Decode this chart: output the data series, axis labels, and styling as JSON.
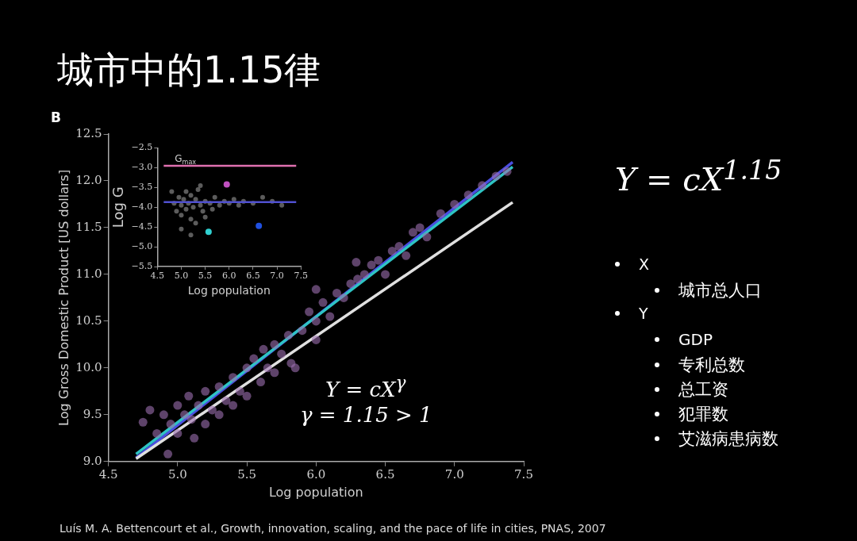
{
  "chart_data": [
    {
      "type": "scatter",
      "title": "城市中的1.15律",
      "xlabel": "Log population",
      "ylabel": "Log Gross Domestic Product [US dollars]",
      "xlim": [
        4.5,
        7.5
      ],
      "ylim": [
        9.0,
        12.5
      ],
      "xticks": [
        {
          "value": 4.5,
          "label": "4.5"
        },
        {
          "value": 5,
          "label": "5.0"
        },
        {
          "value": 5.5,
          "label": "5.5"
        },
        {
          "value": 6,
          "label": "6.0"
        },
        {
          "value": 6.5,
          "label": "6.5"
        },
        {
          "value": 7,
          "label": "7.0"
        },
        {
          "value": 7.5,
          "label": "7.5"
        }
      ],
      "yticks": [
        {
          "value": 9,
          "label": "9.0"
        },
        {
          "value": 9.5,
          "label": "9.5"
        },
        {
          "value": 10,
          "label": "10.0"
        },
        {
          "value": 10.5,
          "label": "10.5"
        },
        {
          "value": 11,
          "label": "11.0"
        },
        {
          "value": 11.5,
          "label": "11.5"
        },
        {
          "value": 12,
          "label": "12.0"
        },
        {
          "value": 12.5,
          "label": "12.5"
        }
      ],
      "grid": false,
      "legend": false,
      "x": [
        4.75,
        4.8,
        4.85,
        4.9,
        4.93,
        4.95,
        5.0,
        5.0,
        5.05,
        5.08,
        5.1,
        5.12,
        5.15,
        5.2,
        5.2,
        5.25,
        5.3,
        5.3,
        5.35,
        5.4,
        5.4,
        5.45,
        5.5,
        5.5,
        5.55,
        5.6,
        5.62,
        5.65,
        5.7,
        5.7,
        5.75,
        5.8,
        5.82,
        5.85,
        5.9,
        5.95,
        6.0,
        6.0,
        6.0,
        6.05,
        6.1,
        6.15,
        6.2,
        6.25,
        6.29,
        6.3,
        6.35,
        6.4,
        6.45,
        6.5,
        6.55,
        6.6,
        6.65,
        6.7,
        6.75,
        6.8,
        6.9,
        7.0,
        7.1,
        7.2,
        7.3,
        7.38
      ],
      "series": [
        {
          "marker": "circle",
          "color": "#9c6fb0",
          "values": [
            9.42,
            9.55,
            9.3,
            9.5,
            9.08,
            9.4,
            9.6,
            9.3,
            9.5,
            9.7,
            9.45,
            9.25,
            9.6,
            9.75,
            9.4,
            9.55,
            9.8,
            9.5,
            9.65,
            9.9,
            9.6,
            9.75,
            10.0,
            9.7,
            10.1,
            9.85,
            10.2,
            10.0,
            10.25,
            9.95,
            10.15,
            10.35,
            10.05,
            10.0,
            10.4,
            10.6,
            10.5,
            10.3,
            10.84,
            10.7,
            10.55,
            10.8,
            10.75,
            10.9,
            11.13,
            10.95,
            11.0,
            11.1,
            11.15,
            11.0,
            11.25,
            11.3,
            11.2,
            11.45,
            11.5,
            11.4,
            11.65,
            11.75,
            11.85,
            11.95,
            12.05,
            12.1
          ]
        },
        {
          "type": "line",
          "color": "#e0e0e0",
          "x": [
            4.7,
            7.42
          ],
          "values": [
            9.03,
            11.77
          ]
        },
        {
          "type": "line",
          "color": "#2ec4c4",
          "x": [
            4.7,
            7.42
          ],
          "values": [
            9.08,
            12.15
          ]
        },
        {
          "type": "line",
          "color": "#4a4ee0",
          "x": [
            4.7,
            7.42
          ],
          "values": [
            9.04,
            12.2
          ]
        }
      ],
      "annotations": [
        "B",
        "Y = cX$^{γ}$",
        "γ = 1.15 > 1",
        "Y = cX$^{1.15}$",
        "X",
        "城市总人口",
        "Y",
        "GDP",
        "专利总数",
        "总工资",
        "犯罪数",
        "艾滋病患病数",
        "Luís M. A. Bettencourt et al., Growth, innovation,  scaling, and the pace of life in cities, PNAS, 2007"
      ]
    },
    {
      "type": "scatter",
      "xlabel": "Log population",
      "ylabel": "Log G",
      "xlim": [
        4.5,
        7.5
      ],
      "ylim": [
        -5.5,
        -2.5
      ],
      "xticks": [
        {
          "value": 4.5,
          "label": "4.5"
        },
        {
          "value": 5,
          "label": "5.0"
        },
        {
          "value": 5.5,
          "label": "5.5"
        },
        {
          "value": 6,
          "label": "6.0"
        },
        {
          "value": 6.5,
          "label": "6.5"
        },
        {
          "value": 7,
          "label": "7.0"
        },
        {
          "value": 7.5,
          "label": "7.5"
        }
      ],
      "yticks": [
        {
          "value": -2.5,
          "label": "−2.5"
        },
        {
          "value": -3,
          "label": "−3.0"
        },
        {
          "value": -3.5,
          "label": "−3.5"
        },
        {
          "value": -4,
          "label": "−4.0"
        },
        {
          "value": -4.5,
          "label": "−4.5"
        },
        {
          "value": -5,
          "label": "−5.0"
        },
        {
          "value": -5.5,
          "label": "−5.5"
        }
      ],
      "grid": false,
      "legend": false,
      "marker": "circle",
      "series": [
        {
          "color": "#9a9a9a",
          "x": [
            4.8,
            4.85,
            4.9,
            4.95,
            5.0,
            5.0,
            5.05,
            5.1,
            5.1,
            5.15,
            5.2,
            5.2,
            5.25,
            5.3,
            5.3,
            5.35,
            5.4,
            5.45,
            5.5,
            5.5,
            5.6,
            5.65,
            5.7,
            5.8,
            5.9,
            6.0,
            6.1,
            6.2,
            6.3,
            6.5,
            6.7,
            6.9,
            7.1,
            5.2,
            5.4,
            5.0
          ],
          "values": [
            -3.6,
            -3.9,
            -4.1,
            -3.75,
            -3.95,
            -4.2,
            -3.8,
            -3.6,
            -4.05,
            -3.9,
            -4.3,
            -3.7,
            -4.0,
            -3.8,
            -4.4,
            -3.55,
            -3.95,
            -4.1,
            -3.85,
            -4.25,
            -3.9,
            -4.05,
            -3.75,
            -3.95,
            -3.85,
            -3.9,
            -3.8,
            -3.95,
            -3.85,
            -3.9,
            -3.75,
            -3.85,
            -3.95,
            -4.7,
            -3.45,
            -4.55
          ]
        },
        {
          "color": "#c050c0",
          "x": [
            5.95
          ],
          "values": [
            -3.42
          ]
        },
        {
          "color": "#30d0d0",
          "x": [
            5.57
          ],
          "values": [
            -4.62
          ]
        },
        {
          "color": "#2050e0",
          "x": [
            6.62
          ],
          "values": [
            -4.47
          ]
        }
      ],
      "ref_lines": [
        {
          "axis": "y",
          "value": -2.95,
          "label": "G$_{max}$",
          "color": "#e070b0"
        },
        {
          "axis": "y",
          "value": -3.87,
          "color": "#5050d0"
        }
      ]
    }
  ]
}
